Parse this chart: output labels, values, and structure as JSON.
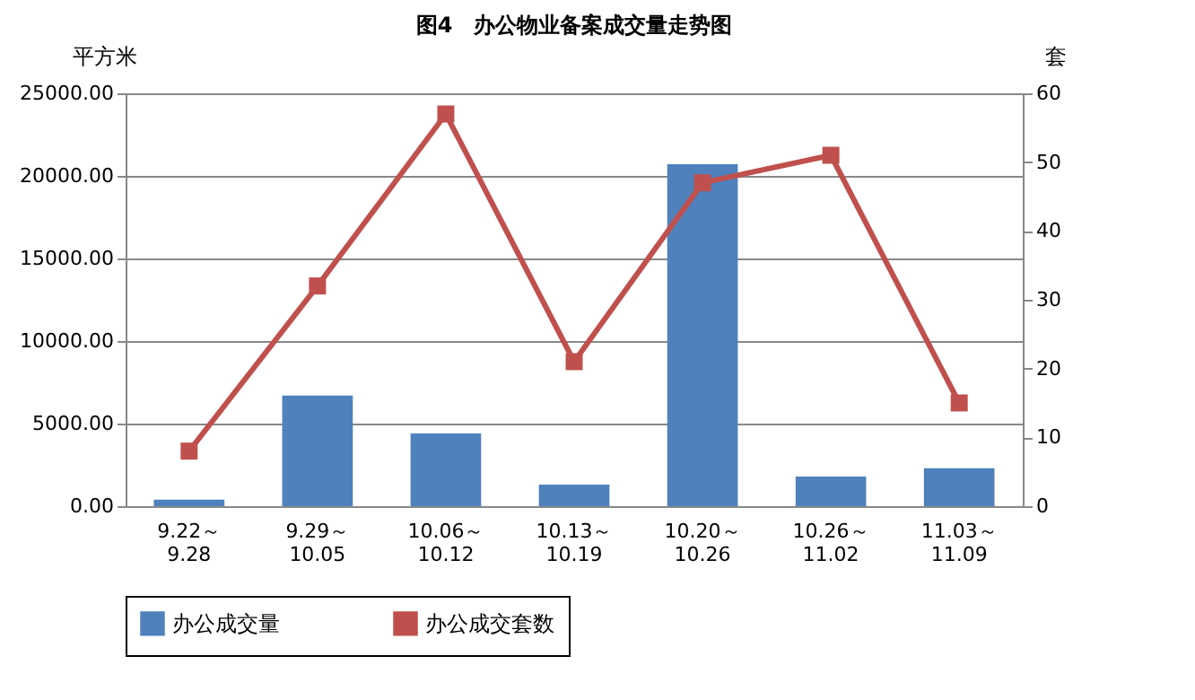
{
  "chart_data": {
    "type": "bar",
    "title": "图4　办公物业备案成交量走势图",
    "ylabel": "平方米",
    "y2label": "套",
    "categories": [
      "9.22～9.28",
      "9.29～10.05",
      "10.06～10.12",
      "10.13～10.19",
      "10.20～10.26",
      "10.26～11.02",
      "11.03～11.09"
    ],
    "series": [
      {
        "name": "办公成交量",
        "color": "#4f81bd",
        "values": [
          400,
          6700,
          4400,
          1300,
          20700,
          1800,
          2300
        ]
      },
      {
        "name": "办公成交套数",
        "type": "line",
        "axis": "y2",
        "color": "#c0504d",
        "marker": "square",
        "values": [
          8,
          32,
          57,
          21,
          47,
          51,
          15
        ]
      }
    ],
    "ylim": [
      0,
      25000
    ],
    "yticks": [
      {
        "value": 0,
        "label": "0.00"
      },
      {
        "value": 5000,
        "label": "5000.00"
      },
      {
        "value": 10000,
        "label": "10000.00"
      },
      {
        "value": 15000,
        "label": "15000.00"
      },
      {
        "value": 20000,
        "label": "20000.00"
      },
      {
        "value": 25000,
        "label": "25000.00"
      }
    ],
    "y2lim": [
      0,
      60
    ],
    "y2ticks": [
      0,
      10,
      20,
      30,
      40,
      50,
      60
    ],
    "grid": "y",
    "legend": "bottom"
  }
}
